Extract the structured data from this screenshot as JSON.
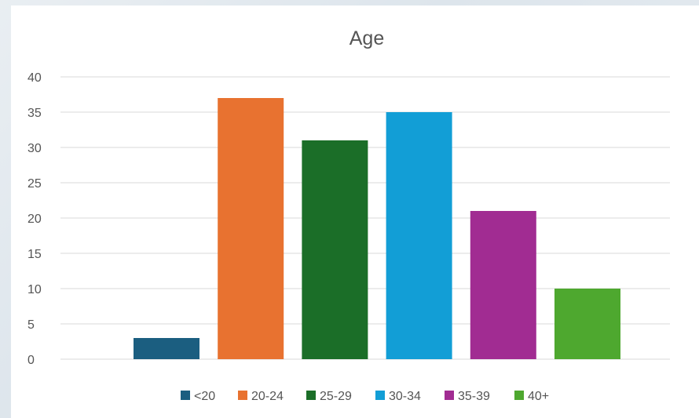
{
  "chart_data": {
    "type": "bar",
    "title": "Age",
    "xlabel": "",
    "ylabel": "",
    "ylim": [
      0,
      40
    ],
    "yticks": [
      0,
      5,
      10,
      15,
      20,
      25,
      30,
      35,
      40
    ],
    "grid": true,
    "legend_position": "bottom",
    "series": [
      {
        "name": "<20",
        "value": 3,
        "color": "#1b5e80"
      },
      {
        "name": "20-24",
        "value": 37,
        "color": "#e87230"
      },
      {
        "name": "25-29",
        "value": 31,
        "color": "#1b6e28"
      },
      {
        "name": "30-34",
        "value": 35,
        "color": "#129ed6"
      },
      {
        "name": "35-39",
        "value": 21,
        "color": "#a12c92"
      },
      {
        "name": "40+",
        "value": 10,
        "color": "#4ea82f"
      }
    ]
  }
}
